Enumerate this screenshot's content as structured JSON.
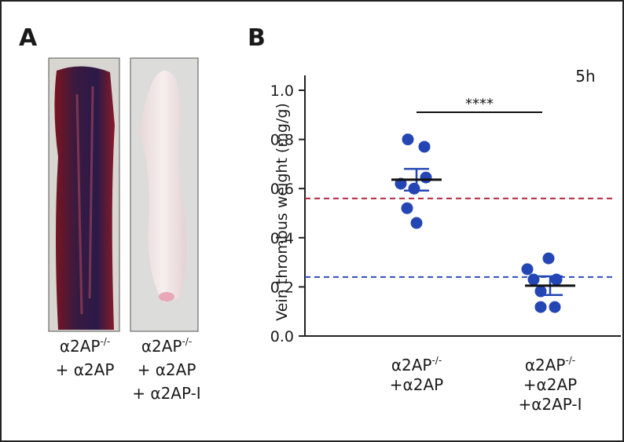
{
  "panel_a": {
    "letter": "A",
    "photos": [
      {
        "label": {
          "head": "α2AP",
          "sup": "-/-",
          "lines": [
            "+ α2AP"
          ]
        }
      },
      {
        "label": {
          "head": "α2AP",
          "sup": "-/-",
          "lines": [
            "+ α2AP",
            "+ α2AP-I"
          ]
        }
      }
    ]
  },
  "chart_data": {
    "type": "scatter",
    "panel_letter": "B",
    "annotation": "5h",
    "significance": "****",
    "ylabel": "Vein thrombus weight (mg/g)",
    "categories": [
      {
        "head": "α2AP",
        "sup": "-/-",
        "lines": [
          "+α2AP"
        ]
      },
      {
        "head": "α2AP",
        "sup": "-/-",
        "lines": [
          "+α2AP",
          "+α2AP-I"
        ]
      }
    ],
    "groups": [
      {
        "color": "#2446b4",
        "values": [
          0.8,
          0.77,
          0.6,
          0.62,
          0.645,
          0.52,
          0.46
        ],
        "mean": 0.636,
        "sem": 0.044
      },
      {
        "color": "#2446b4",
        "values": [
          0.316,
          0.272,
          0.23,
          0.23,
          0.182,
          0.118,
          0.118
        ],
        "mean": 0.205,
        "sem": 0.038
      }
    ],
    "reference_lines": [
      {
        "value": 0.56,
        "color": "#b0243a"
      },
      {
        "value": 0.24,
        "color": "#2e4fb8"
      }
    ],
    "ylim": [
      0,
      1.0
    ],
    "yticks": [
      {
        "value": 0,
        "label": "0.0"
      },
      0.2,
      0.4,
      0.6,
      0.8,
      {
        "value": 1.0,
        "label": "1.0"
      }
    ]
  }
}
